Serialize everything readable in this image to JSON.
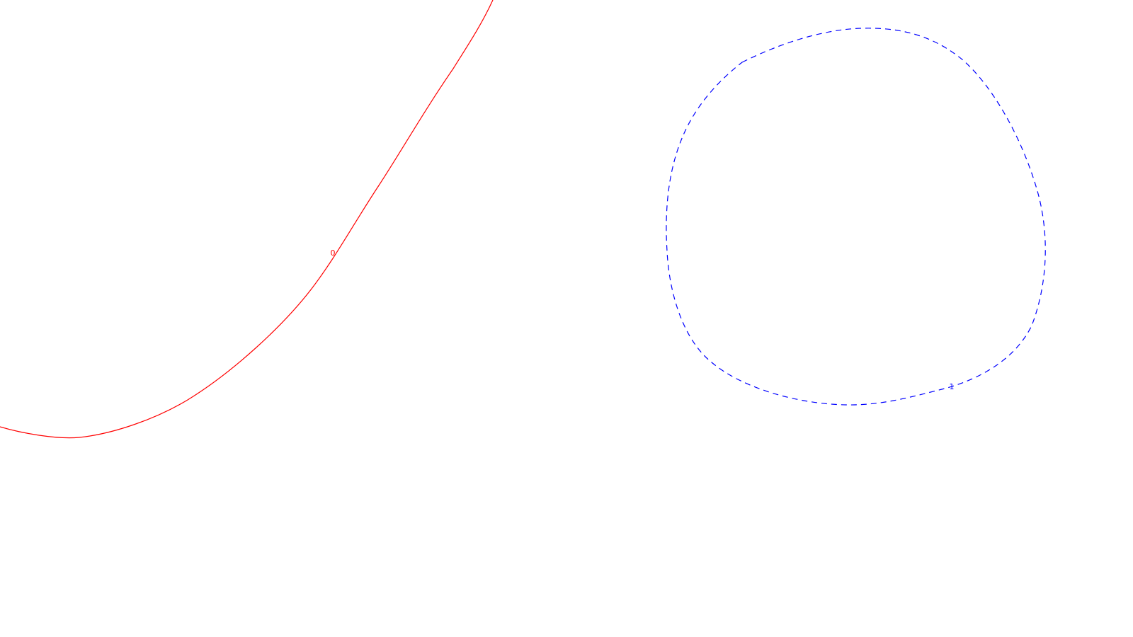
{
  "contours": [
    {
      "level_label": "0",
      "color": "#ff0000",
      "line_style": "solid"
    },
    {
      "level_label": "1",
      "color": "#0000ff",
      "line_style": "dashed"
    }
  ]
}
